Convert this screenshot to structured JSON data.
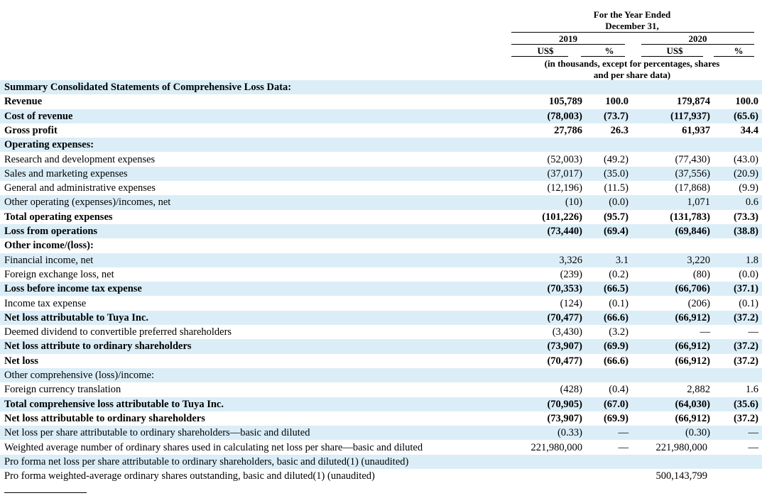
{
  "header": {
    "period_line1": "For the Year Ended",
    "period_line2": "December 31,",
    "years": [
      "2019",
      "2020"
    ],
    "units": [
      "US$",
      "%",
      "US$",
      "%"
    ],
    "note_line1": "(in thousands, except for percentages, shares",
    "note_line2": "and per share data)"
  },
  "table": {
    "rows": [
      {
        "label": "Summary Consolidated Statements of Comprehensive Loss Data:",
        "cells": [
          null,
          null,
          null,
          null
        ],
        "bold": true
      },
      {
        "label": "Revenue",
        "cells": [
          "105,789",
          "100.0",
          "179,874",
          "100.0"
        ],
        "bold": true
      },
      {
        "label": "Cost of revenue",
        "cells": [
          "(78,003)",
          "(73.7)",
          "(117,937)",
          "(65.6)"
        ],
        "bold": true
      },
      {
        "label": "Gross profit",
        "cells": [
          "27,786",
          "26.3",
          "61,937",
          "34.4"
        ],
        "bold": true
      },
      {
        "label": "Operating expenses:",
        "cells": [
          null,
          null,
          null,
          null
        ],
        "bold": true
      },
      {
        "label": "Research and development expenses",
        "cells": [
          "(52,003)",
          "(49.2)",
          "(77,430)",
          "(43.0)"
        ],
        "bold": false
      },
      {
        "label": "Sales and marketing expenses",
        "cells": [
          "(37,017)",
          "(35.0)",
          "(37,556)",
          "(20.9)"
        ],
        "bold": false
      },
      {
        "label": "General and administrative expenses",
        "cells": [
          "(12,196)",
          "(11.5)",
          "(17,868)",
          "(9.9)"
        ],
        "bold": false
      },
      {
        "label": "Other operating (expenses)/incomes, net",
        "cells": [
          "(10)",
          "(0.0)",
          "1,071",
          "0.6"
        ],
        "bold": false
      },
      {
        "label": "Total operating expenses",
        "cells": [
          "(101,226)",
          "(95.7)",
          "(131,783)",
          "(73.3)"
        ],
        "bold": true
      },
      {
        "label": "Loss from operations",
        "cells": [
          "(73,440)",
          "(69.4)",
          "(69,846)",
          "(38.8)"
        ],
        "bold": true
      },
      {
        "label": "Other income/(loss):",
        "cells": [
          null,
          null,
          null,
          null
        ],
        "bold": true
      },
      {
        "label": "Financial income, net",
        "cells": [
          "3,326",
          "3.1",
          "3,220",
          "1.8"
        ],
        "bold": false
      },
      {
        "label": "Foreign exchange loss, net",
        "cells": [
          "(239)",
          "(0.2)",
          "(80)",
          "(0.0)"
        ],
        "bold": false
      },
      {
        "label": "Loss before income tax expense",
        "cells": [
          "(70,353)",
          "(66.5)",
          "(66,706)",
          "(37.1)"
        ],
        "bold": true
      },
      {
        "label": "Income tax expense",
        "cells": [
          "(124)",
          "(0.1)",
          "(206)",
          "(0.1)"
        ],
        "bold": false
      },
      {
        "label": "Net loss attributable to Tuya Inc.",
        "cells": [
          "(70,477)",
          "(66.6)",
          "(66,912)",
          "(37.2)"
        ],
        "bold": true
      },
      {
        "label": "Deemed dividend to convertible preferred shareholders",
        "cells": [
          "(3,430)",
          "(3.2)",
          "—",
          "—"
        ],
        "bold": false
      },
      {
        "label": "Net loss attribute to ordinary shareholders",
        "cells": [
          "(73,907)",
          "(69.9)",
          "(66,912)",
          "(37.2)"
        ],
        "bold": true
      },
      {
        "label": "Net loss",
        "cells": [
          "(70,477)",
          "(66.6)",
          "(66,912)",
          "(37.2)"
        ],
        "bold": true
      },
      {
        "label": "Other comprehensive (loss)/income:",
        "cells": [
          null,
          null,
          null,
          null
        ],
        "bold": false
      },
      {
        "label": "Foreign currency translation",
        "cells": [
          "(428)",
          "(0.4)",
          "2,882",
          "1.6"
        ],
        "bold": false
      },
      {
        "label": "Total comprehensive loss attributable to Tuya Inc.",
        "cells": [
          "(70,905)",
          "(67.0)",
          "(64,030)",
          "(35.6)"
        ],
        "bold": true
      },
      {
        "label": "Net loss attributable to ordinary shareholders",
        "cells": [
          "(73,907)",
          "(69.9)",
          "(66,912)",
          "(37.2)"
        ],
        "bold": true
      },
      {
        "label": "Net loss per share attributable to ordinary shareholders—basic and diluted",
        "cells": [
          "(0.33)",
          "—",
          "(0.30)",
          "—"
        ],
        "bold": false
      },
      {
        "label": "Weighted average number of ordinary shares used in calculating net loss per share—basic and diluted",
        "cells": [
          "221,980,000",
          "—",
          "221,980,000",
          "—"
        ],
        "bold": false
      },
      {
        "label": "Pro forma net loss per share attributable to ordinary shareholders, basic and diluted(1) (unaudited)",
        "cells": [
          null,
          null,
          null,
          null
        ],
        "bold": false
      },
      {
        "label": "Pro forma weighted-average ordinary shares outstanding, basic and diluted(1) (unaudited)",
        "cells": [
          null,
          null,
          "500,143,799",
          null
        ],
        "bold": false
      }
    ]
  }
}
